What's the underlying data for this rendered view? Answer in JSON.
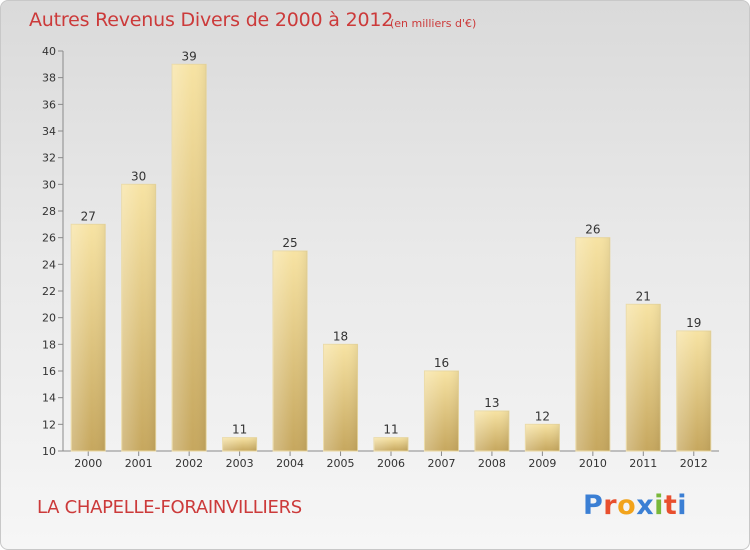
{
  "title": "Autres Revenus Divers de 2000 à 2012",
  "subtitle": "(en milliers d'€)",
  "commune": "LA CHAPELLE-FORAINVILLIERS",
  "logo": {
    "text": "Proxiti",
    "letters": [
      "P",
      "r",
      "o",
      "x",
      "i",
      "t",
      "i"
    ],
    "letter_colors": [
      "#3b7fd4",
      "#e84f2e",
      "#f2a31b",
      "#3b7fd4",
      "#79b83a",
      "#e84f2e",
      "#3b7fd4"
    ]
  },
  "colors": {
    "title": "#cc3a3a",
    "bar_light": "#f5df9a",
    "bar_dark": "#c8a960",
    "axis": "#888888"
  },
  "chart_data": {
    "type": "bar",
    "categories": [
      "2000",
      "2001",
      "2002",
      "2003",
      "2004",
      "2005",
      "2006",
      "2007",
      "2008",
      "2009",
      "2010",
      "2011",
      "2012"
    ],
    "values": [
      27,
      30,
      39,
      11,
      25,
      18,
      11,
      16,
      13,
      12,
      26,
      21,
      19
    ],
    "data_labels": [
      "27",
      "30",
      "39",
      "11",
      "25",
      "18",
      "11",
      "16",
      "13",
      "12",
      "26",
      "21",
      "19"
    ],
    "ylim": [
      10,
      40
    ],
    "yticks": [
      "10",
      "12",
      "14",
      "16",
      "18",
      "20",
      "22",
      "24",
      "26",
      "28",
      "30",
      "32",
      "34",
      "36",
      "38",
      "40"
    ],
    "grid": false,
    "title": "Autres Revenus Divers de 2000 à 2012",
    "xlabel": "",
    "ylabel": ""
  }
}
